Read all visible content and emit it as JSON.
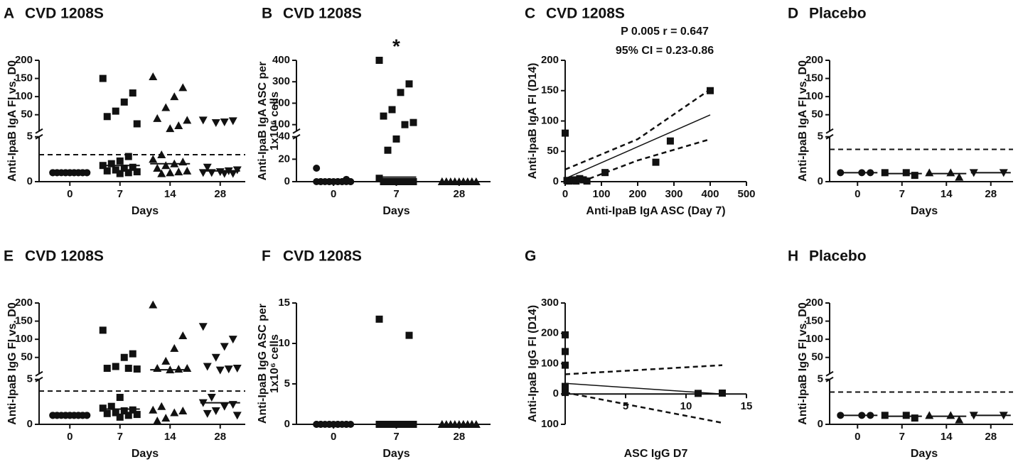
{
  "chart_data": [
    {
      "type": "strip",
      "panel": "A",
      "title": "CVD 1208S",
      "ylabel": "Anti-IpaB IgA FI vs. D0",
      "xlabel": "Days",
      "categories": [
        "0",
        "7",
        "14",
        "28"
      ],
      "markers": [
        "circle",
        "square",
        "triangle",
        "triangle-down"
      ],
      "segments": [
        {
          "ylim": [
            0,
            5
          ],
          "yticks": [
            0,
            5
          ]
        },
        {
          "ylim": [
            5,
            200
          ],
          "yticks": [
            50,
            100,
            150,
            200
          ]
        }
      ],
      "groups": [
        [
          1,
          1,
          1,
          1,
          1,
          1,
          1,
          1,
          1,
          1,
          1,
          1,
          1,
          1,
          1,
          1,
          1
        ],
        [
          150,
          110,
          85,
          60,
          45,
          25,
          2.8,
          2.3,
          2.0,
          1.8,
          1.6,
          1.5,
          1.3,
          1.2,
          1.1,
          1.0,
          0.9
        ],
        [
          155,
          125,
          100,
          70,
          40,
          35,
          20,
          12,
          3.0,
          2.5,
          2.2,
          2.0,
          1.8,
          1.5,
          1.2,
          1.1,
          1.0,
          0.9
        ],
        [
          35,
          33,
          30,
          28,
          1.6,
          1.3,
          1.2,
          1.1,
          1.0,
          1.0,
          0.9,
          0.9
        ]
      ],
      "medians": [
        1,
        1.8,
        2,
        1.2
      ],
      "threshold": 3
    },
    {
      "type": "strip",
      "panel": "B",
      "title": "CVD 1208S",
      "ylabel": [
        "Anti-IpaB IgA ASC per",
        "1x10⁶ cells"
      ],
      "xlabel": "Days",
      "categories": [
        "0",
        "7",
        "28"
      ],
      "markers": [
        "circle",
        "square",
        "triangle"
      ],
      "segments": [
        {
          "ylim": [
            0,
            40
          ],
          "yticks": [
            0,
            20,
            40
          ]
        },
        {
          "ylim": [
            70,
            400
          ],
          "yticks": [
            100,
            200,
            300,
            400
          ]
        }
      ],
      "groups": [
        [
          12,
          2,
          0,
          0,
          0,
          0,
          0,
          0,
          0,
          0,
          0,
          0,
          0,
          0,
          0,
          0
        ],
        [
          400,
          290,
          250,
          170,
          140,
          110,
          100,
          38,
          28,
          3,
          0,
          0,
          0,
          0,
          0,
          0,
          0,
          0
        ],
        [
          0,
          0,
          0,
          0,
          0,
          0,
          0,
          0,
          0,
          0,
          0,
          0,
          0,
          0
        ]
      ],
      "medians": [
        0,
        4,
        0
      ],
      "annotations": [
        "*"
      ]
    },
    {
      "type": "scatter",
      "panel": "C",
      "title": "CVD 1208S",
      "ylabel": "Anti-IpaB IgA FI (D14)",
      "xlabel": "Anti-IpaB IgA ASC (Day 7)",
      "marker": "square",
      "xlim": [
        0,
        500
      ],
      "xticks": [
        0,
        100,
        200,
        300,
        400,
        500
      ],
      "ylim": [
        0,
        200
      ],
      "yticks": [
        0,
        50,
        100,
        150,
        200
      ],
      "x": [
        0,
        5,
        10,
        20,
        25,
        30,
        40,
        50,
        60,
        110,
        250,
        290,
        400
      ],
      "y": [
        80,
        2,
        1,
        2,
        3,
        1,
        5,
        3,
        1,
        15,
        32,
        67,
        150
      ],
      "fit": {
        "x": [
          0,
          400
        ],
        "y": [
          5,
          110
        ]
      },
      "ci_upper": {
        "x": [
          0,
          200,
          400
        ],
        "y": [
          20,
          70,
          152
        ]
      },
      "ci_lower": {
        "x": [
          0,
          200,
          400
        ],
        "y": [
          -10,
          35,
          70
        ]
      },
      "annotations": [
        "P  0.005 r = 0.647",
        "95% CI = 0.23-0.86"
      ]
    },
    {
      "type": "strip",
      "panel": "D",
      "title": "Placebo",
      "ylabel": "Anti-IpaB IgA FI vs. D0",
      "xlabel": "Days",
      "categories": [
        "0",
        "7",
        "14",
        "28"
      ],
      "markers": [
        "circle",
        "square",
        "triangle",
        "triangle-down"
      ],
      "segments": [
        {
          "ylim": [
            0,
            5
          ],
          "yticks": [
            0,
            5
          ]
        },
        {
          "ylim": [
            5,
            200
          ],
          "yticks": [
            50,
            100,
            150,
            200
          ]
        }
      ],
      "groups": [
        [
          1,
          1,
          1
        ],
        [
          1,
          0.7,
          1
        ],
        [
          1,
          0.5,
          1
        ],
        [
          1,
          1
        ]
      ],
      "medians": [
        1,
        0.9,
        0.9,
        1
      ],
      "threshold": 3.6
    },
    {
      "type": "strip",
      "panel": "E",
      "title": "CVD 1208S",
      "ylabel": "Anti-IpaB IgG FI vs. D0",
      "xlabel": "Days",
      "categories": [
        "0",
        "7",
        "14",
        "28"
      ],
      "markers": [
        "circle",
        "square",
        "triangle",
        "triangle-down"
      ],
      "segments": [
        {
          "ylim": [
            0,
            5
          ],
          "yticks": [
            0,
            5
          ]
        },
        {
          "ylim": [
            5,
            200
          ],
          "yticks": [
            50,
            100,
            150,
            200
          ]
        }
      ],
      "groups": [
        [
          1,
          1,
          1,
          1,
          1,
          1,
          1,
          1,
          1,
          1,
          1,
          1,
          1,
          1,
          1,
          1,
          1
        ],
        [
          125,
          60,
          50,
          25,
          20,
          18,
          20,
          3.0,
          2.0,
          1.8,
          1.6,
          1.5,
          1.3,
          1.2,
          1.1,
          1.0,
          0.8
        ],
        [
          195,
          110,
          75,
          40,
          20,
          20,
          18,
          16,
          2.0,
          1.6,
          1.5,
          1.3,
          0.7,
          0.4
        ],
        [
          135,
          100,
          80,
          50,
          25,
          20,
          18,
          15,
          3.0,
          2.4,
          2.2,
          2.0,
          1.5,
          1.2,
          1.0
        ]
      ],
      "medians": [
        1,
        1.7,
        16,
        2.4
      ],
      "threshold": 3.7
    },
    {
      "type": "strip",
      "panel": "F",
      "title": "CVD 1208S",
      "ylabel": [
        "Anti-IpaB IgG ASC per",
        "1x10⁶ cells"
      ],
      "xlabel": "Days",
      "categories": [
        "0",
        "7",
        "28"
      ],
      "markers": [
        "circle",
        "square",
        "triangle"
      ],
      "ylim": [
        0,
        15
      ],
      "yticks": [
        0,
        5,
        10,
        15
      ],
      "groups": [
        [
          0,
          0,
          0,
          0,
          0,
          0,
          0,
          0,
          0,
          0,
          0,
          0,
          0,
          0
        ],
        [
          13,
          11,
          0,
          0,
          0,
          0,
          0,
          0,
          0,
          0,
          0,
          0,
          0,
          0,
          0,
          0
        ],
        [
          0,
          0,
          0,
          0,
          0,
          0,
          0,
          0,
          0,
          0,
          0,
          0
        ]
      ],
      "medians": [
        0,
        0,
        0
      ]
    },
    {
      "type": "scatter",
      "panel": "G",
      "ylabel": "Anti-IpaB IgG FI (D14)",
      "xlabel": "ASC IgG D7",
      "marker": "square",
      "xlim": [
        0,
        15
      ],
      "xticks": [
        5,
        10,
        15
      ],
      "ylim": [
        -100,
        300
      ],
      "yticks": [
        {
          "value": -100,
          "label": "100"
        },
        0,
        100,
        200,
        300
      ],
      "x": [
        0,
        0,
        0,
        0,
        0,
        11,
        13
      ],
      "y": [
        195,
        140,
        95,
        25,
        5,
        2,
        3
      ],
      "fit": {
        "x": [
          0,
          13
        ],
        "y": [
          35,
          0
        ]
      },
      "ci_upper": {
        "x": [
          0,
          13
        ],
        "y": [
          65,
          95
        ]
      },
      "ci_lower": {
        "x": [
          0,
          13
        ],
        "y": [
          5,
          -95
        ]
      }
    },
    {
      "type": "strip",
      "panel": "H",
      "title": "Placebo",
      "ylabel": "Anti-IpaB IgG FI vs. D0",
      "xlabel": "Days",
      "categories": [
        "0",
        "7",
        "14",
        "28"
      ],
      "markers": [
        "circle",
        "square",
        "triangle",
        "triangle-down"
      ],
      "segments": [
        {
          "ylim": [
            0,
            5
          ],
          "yticks": [
            0,
            5
          ]
        },
        {
          "ylim": [
            5,
            200
          ],
          "yticks": [
            50,
            100,
            150,
            200
          ]
        }
      ],
      "groups": [
        [
          1,
          1,
          1
        ],
        [
          1,
          0.7,
          1
        ],
        [
          1,
          0.5,
          1
        ],
        [
          1,
          1
        ]
      ],
      "medians": [
        1,
        0.9,
        0.9,
        1
      ],
      "threshold": 3.6
    }
  ]
}
